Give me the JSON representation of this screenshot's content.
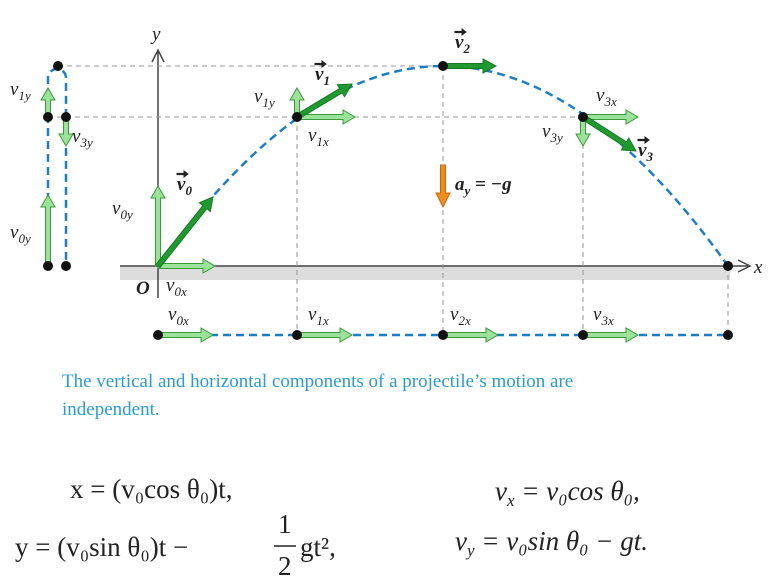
{
  "axes": {
    "y": "y",
    "x": "x",
    "origin": "O"
  },
  "labels": [
    {
      "base": "v",
      "sub": "1y"
    },
    {
      "base": "v",
      "sub": "3y"
    },
    {
      "base": "v",
      "sub": "0y"
    },
    {
      "base": "v",
      "sub": "0y"
    },
    {
      "base": "v",
      "sub": "1y"
    },
    {
      "base": "v",
      "sub": "1x"
    },
    {
      "base": "v",
      "sub": "3x"
    },
    {
      "base": "v",
      "sub": "3y"
    },
    {
      "base": "v",
      "sub": "0x"
    },
    {
      "base": "v",
      "sub": "0x"
    },
    {
      "base": "v",
      "sub": "1x"
    },
    {
      "base": "v",
      "sub": "2x"
    },
    {
      "base": "v",
      "sub": "3x"
    }
  ],
  "vectors": [
    {
      "base": "v",
      "sub": "0"
    },
    {
      "base": "v",
      "sub": "1"
    },
    {
      "base": "v",
      "sub": "2"
    },
    {
      "base": "v",
      "sub": "3"
    }
  ],
  "acceleration": {
    "base": "a",
    "sub": "y",
    "rest": " = −g"
  },
  "caption": [
    "The vertical and horizontal components of a projectile’s motion are",
    "independent."
  ],
  "equations": {
    "x": "x = (v₀cos θ₀)t,",
    "y_left": "y = (v₀sin θ₀)t −",
    "half_num": "1",
    "half_den": "2",
    "y_right": "gt²,",
    "vx": {
      "base": "v",
      "sub": "x",
      "rest": " = v₀cos θ₀,"
    },
    "vy": {
      "base": "v",
      "sub": "y",
      "rest": " = v₀sin θ₀ − gt."
    }
  }
}
